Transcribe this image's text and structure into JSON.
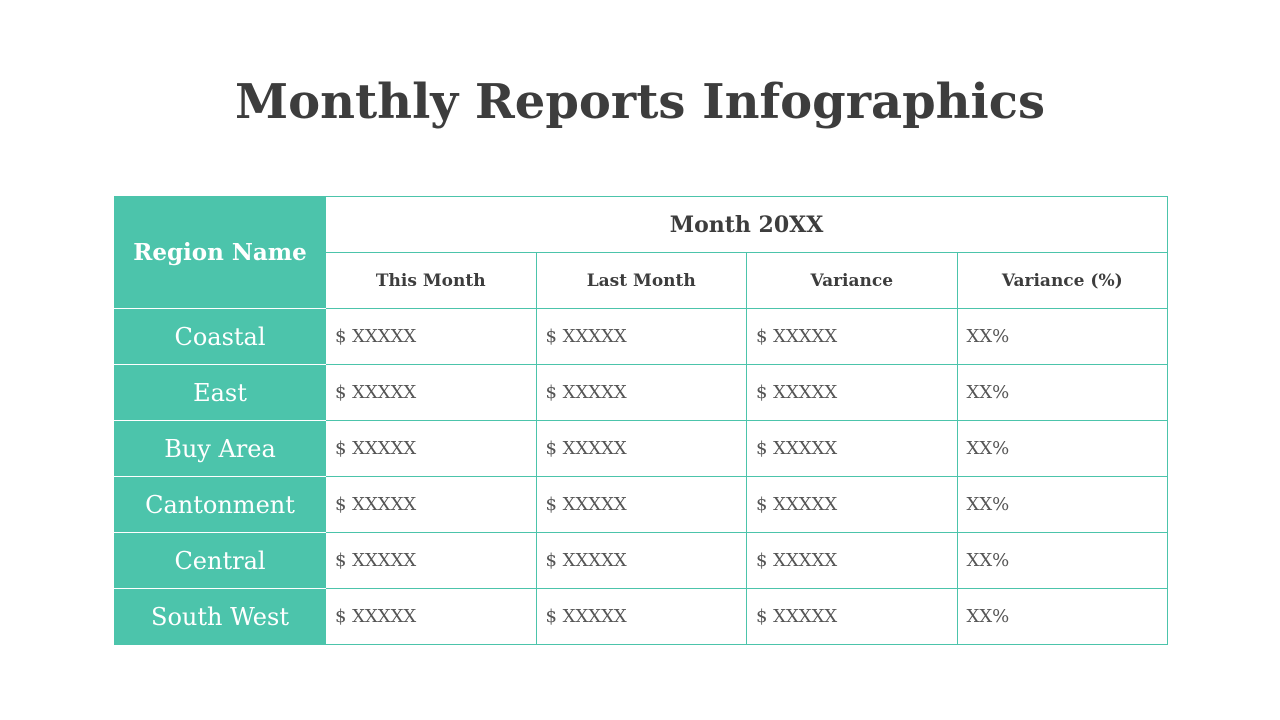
{
  "title": "Monthly Reports Infographics",
  "colors": {
    "accent": "#4cc4ab",
    "text": "#3d3d3d"
  },
  "table": {
    "region_header": "Region Name",
    "month_header": "Month 20XX",
    "columns": [
      "This Month",
      "Last Month",
      "Variance",
      "Variance (%)"
    ],
    "rows": [
      {
        "region": "Coastal",
        "values": [
          "$ XXXXX",
          "$ XXXXX",
          "$ XXXXX",
          "XX%"
        ]
      },
      {
        "region": "East",
        "values": [
          "$ XXXXX",
          "$ XXXXX",
          "$ XXXXX",
          "XX%"
        ]
      },
      {
        "region": "Buy Area",
        "values": [
          "$ XXXXX",
          "$ XXXXX",
          "$ XXXXX",
          "XX%"
        ]
      },
      {
        "region": "Cantonment",
        "values": [
          "$ XXXXX",
          "$ XXXXX",
          "$ XXXXX",
          "XX%"
        ]
      },
      {
        "region": "Central",
        "values": [
          "$ XXXXX",
          "$ XXXXX",
          "$ XXXXX",
          "XX%"
        ]
      },
      {
        "region": "South West",
        "values": [
          "$ XXXXX",
          "$ XXXXX",
          "$ XXXXX",
          "XX%"
        ]
      }
    ]
  }
}
